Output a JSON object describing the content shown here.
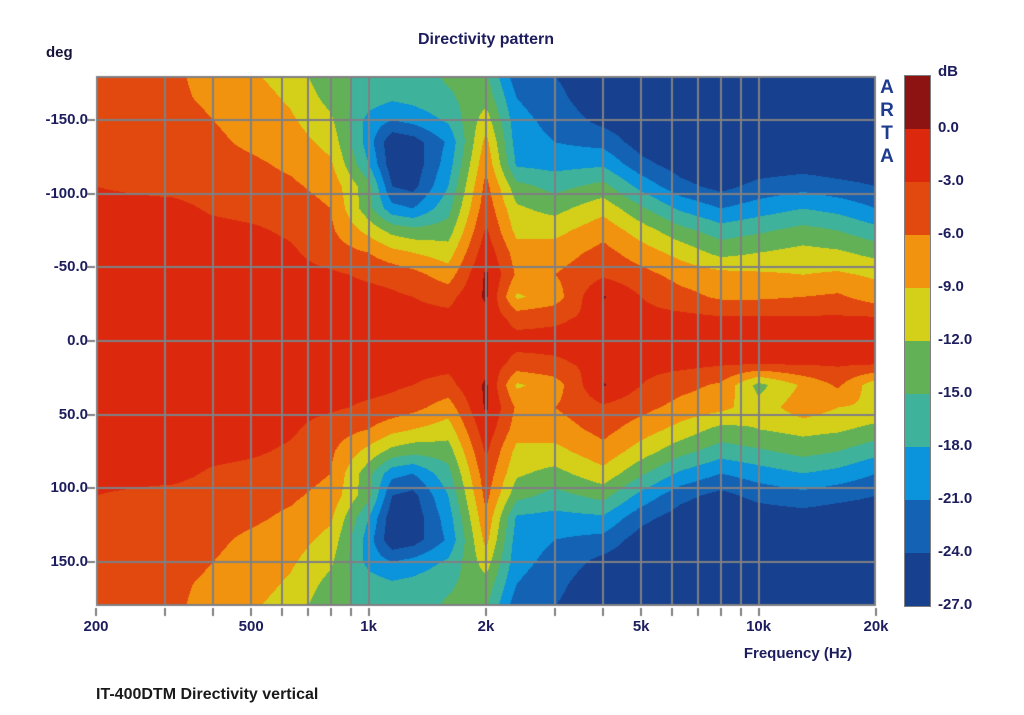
{
  "title": "Directivity pattern",
  "caption": "IT-400DTM Directivity vertical",
  "watermark": {
    "letters": [
      "A",
      "R",
      "T",
      "A"
    ],
    "color": "#1e3c8e"
  },
  "y_axis": {
    "unit_label": "deg",
    "tick_labels": [
      "-150.0",
      "-100.0",
      "-50.0",
      "0.0",
      "50.0",
      "100.0",
      "150.0"
    ],
    "tick_angles": [
      -150,
      -100,
      -50,
      0,
      50,
      100,
      150
    ]
  },
  "x_axis": {
    "title": "Frequency (Hz)",
    "tick_labels": [
      "200",
      "500",
      "1k",
      "2k",
      "5k",
      "10k",
      "20k"
    ],
    "tick_freqs": [
      200,
      500,
      1000,
      2000,
      5000,
      10000,
      20000
    ]
  },
  "colorbar": {
    "unit_label": "dB",
    "tick_labels": [
      "0.0",
      "-3.0",
      "-6.0",
      "-9.0",
      "-12.0",
      "-15.0",
      "-18.0",
      "-21.0",
      "-24.0",
      "-27.0"
    ]
  },
  "chart_data": {
    "type": "heatmap",
    "title": "Directivity pattern",
    "xlabel": "Frequency (Hz)",
    "ylabel": "deg",
    "x_scale": "log",
    "x_range": [
      200,
      20000
    ],
    "y_range": [
      -180,
      180
    ],
    "value_unit": "dB",
    "value_range": [
      0,
      -27
    ],
    "levels_db": [
      0,
      -3,
      -6,
      -9,
      -12,
      -15,
      -18,
      -21,
      -24
    ],
    "colors": [
      "#8D1212",
      "#DC290E",
      "#E2490F",
      "#F1930E",
      "#D4D01A",
      "#62B157",
      "#3FB29B",
      "#0B93DB",
      "#1462B4",
      "#17408E"
    ],
    "grid_color": "#7f7f82",
    "gridline_freqs": [
      300,
      400,
      500,
      600,
      700,
      800,
      900,
      1000,
      2000,
      3000,
      4000,
      5000,
      6000,
      7000,
      8000,
      9000,
      10000
    ],
    "gridline_angles": [
      -150,
      -100,
      -50,
      0,
      50,
      100,
      150
    ],
    "minor_tick_freqs": [
      200,
      300,
      400,
      500,
      600,
      700,
      800,
      900,
      1000,
      2000,
      3000,
      4000,
      5000,
      6000,
      7000,
      8000,
      9000,
      10000,
      20000
    ],
    "freqs": [
      200,
      250,
      315,
      400,
      500,
      630,
      800,
      1000,
      1150,
      1300,
      1600,
      2000,
      2400,
      3000,
      4000,
      5000,
      6300,
      8000,
      10000,
      13000,
      16000,
      20000
    ],
    "angles": [
      -180,
      -165,
      -150,
      -135,
      -120,
      -105,
      -90,
      -75,
      -60,
      -45,
      -30,
      -15,
      0,
      15,
      30,
      45,
      60,
      75,
      90,
      105,
      120,
      135,
      150,
      165,
      180
    ],
    "values_db": [
      [
        -4.5,
        -5,
        -5.5,
        -7,
        -8.5,
        -10.5,
        -14,
        -16,
        -17,
        -16.5,
        -14.5,
        -14.5,
        -23,
        -24,
        -26.5,
        -27,
        -28,
        -28,
        -28,
        -28,
        -28,
        -28
      ],
      [
        -4.5,
        -4.5,
        -5.5,
        -6.5,
        -7.5,
        -9.5,
        -13,
        -16.5,
        -17.5,
        -17,
        -15.5,
        -13,
        -21,
        -23,
        -26.5,
        -27,
        -28,
        -28,
        -28,
        -28,
        -28,
        -28
      ],
      [
        -4.5,
        -4.5,
        -5,
        -6,
        -7,
        -8.5,
        -11.5,
        -19,
        -21,
        -20,
        -17.5,
        -10.5,
        -20,
        -22,
        -25,
        -26.5,
        -27.5,
        -28,
        -27.5,
        -27.5,
        -27.5,
        -27.5
      ],
      [
        -4.5,
        -4.5,
        -5,
        -5.5,
        -6.5,
        -7.5,
        -10,
        -19.5,
        -26.5,
        -25.5,
        -20.5,
        -8,
        -19.5,
        -21,
        -22,
        -25.5,
        -27,
        -27.5,
        -27,
        -27,
        -27,
        -27
      ],
      [
        -4,
        -4.5,
        -4.5,
        -5,
        -5.5,
        -6.5,
        -8.5,
        -18,
        -26,
        -26,
        -19.5,
        -6.5,
        -18.5,
        -19,
        -18.5,
        -23,
        -25.5,
        -27,
        -26,
        -25.5,
        -26,
        -26
      ],
      [
        -3,
        -3.5,
        -4,
        -4.5,
        -5,
        -5.5,
        -7,
        -14,
        -24,
        -25,
        -18,
        -5,
        -14,
        -16,
        -14,
        -19,
        -23,
        -25,
        -23,
        -22,
        -23,
        -24
      ],
      [
        -2,
        -2,
        -2,
        -3.5,
        -4,
        -4.5,
        -6,
        -14,
        -20,
        -21,
        -16,
        -4,
        -11.5,
        -13,
        -10,
        -14.5,
        -18.5,
        -21,
        -19.5,
        -18,
        -19,
        -21
      ],
      [
        -1.5,
        -1.5,
        -1.5,
        -2,
        -2.5,
        -3.5,
        -5.5,
        -10,
        -13,
        -14,
        -13.5,
        -2.5,
        -10,
        -10,
        -7,
        -10.5,
        -14,
        -16.5,
        -15.5,
        -14,
        -15,
        -17
      ],
      [
        -1.5,
        -1.5,
        -1.5,
        -1.5,
        -1.5,
        -2.5,
        -4.5,
        -6,
        -8,
        -9,
        -10.5,
        -1,
        -7.5,
        -7.5,
        -5,
        -7.5,
        -10,
        -13,
        -12,
        -11,
        -11.5,
        -13
      ],
      [
        -1.5,
        -1.5,
        -1.5,
        -1.5,
        -1.5,
        -2,
        -2.5,
        -3.5,
        -4,
        -5,
        -7.5,
        0.5,
        -6.5,
        -6,
        -3.5,
        -5,
        -7,
        -8,
        -8.5,
        -9,
        -8.5,
        -9.5
      ],
      [
        -1.5,
        -1.5,
        -1.5,
        -1.5,
        -1.5,
        -1.5,
        -2,
        -2,
        -2.5,
        -3,
        -4,
        0.5,
        -9.5,
        -7.5,
        0.3,
        -3,
        -5,
        -6.5,
        -6.5,
        -6,
        -5.5,
        -7.5
      ],
      [
        -1.5,
        -1.5,
        -1.5,
        -1.5,
        -1.5,
        -1.5,
        -1.5,
        -1.5,
        -2,
        -2,
        -2,
        -1,
        -4,
        -3.5,
        -2,
        -2,
        -2,
        -2.5,
        -2.5,
        -2.5,
        -2.5,
        -2.5
      ],
      [
        -1.5,
        -1.5,
        -1.5,
        -1.5,
        -1.5,
        -1.5,
        -1.5,
        -1.5,
        -1.5,
        -1.5,
        -1.5,
        -1.5,
        -2,
        -2,
        -2,
        -2,
        -2,
        -2,
        -2,
        -2,
        -2,
        -2
      ],
      [
        -1.5,
        -1.5,
        -1.5,
        -1.5,
        -1.5,
        -1.5,
        -1.5,
        -1.5,
        -2,
        -2,
        -2,
        -1,
        -4,
        -3.5,
        -2,
        -2,
        -2,
        -2.5,
        -2.5,
        -2.5,
        -2.5,
        -2.5
      ],
      [
        -1.5,
        -1.5,
        -1.5,
        -1.5,
        -1.5,
        -1.5,
        -2,
        -2,
        -2.5,
        -3,
        -4,
        0.5,
        -9.5,
        -7.5,
        0.3,
        -3,
        -5,
        -6.5,
        -13,
        -8.5,
        -5.5,
        -11
      ],
      [
        -1.5,
        -1.5,
        -1.5,
        -1.5,
        -1.5,
        -2,
        -2.5,
        -3.5,
        -4,
        -5,
        -7.5,
        0.5,
        -6.5,
        -6,
        -3.5,
        -5,
        -7,
        -8,
        -11,
        -7,
        -9,
        -9.5
      ],
      [
        -1.5,
        -1.5,
        -1.5,
        -1.5,
        -1.5,
        -2.5,
        -4.5,
        -6,
        -8,
        -9,
        -10.5,
        -1,
        -7.5,
        -7.5,
        -5,
        -7.5,
        -10,
        -13,
        -12,
        -11,
        -11.5,
        -13
      ],
      [
        -1.5,
        -1.5,
        -1.5,
        -2,
        -2.5,
        -3.5,
        -5.5,
        -10,
        -13,
        -14,
        -13.5,
        -2.5,
        -10,
        -10,
        -7,
        -10.5,
        -14,
        -16.5,
        -15.5,
        -14,
        -15,
        -17
      ],
      [
        -2,
        -2,
        -2,
        -3.5,
        -4,
        -4.5,
        -6,
        -14,
        -20,
        -21,
        -16,
        -4,
        -11.5,
        -13,
        -10,
        -14.5,
        -18.5,
        -21,
        -19.5,
        -18,
        -19,
        -21
      ],
      [
        -3,
        -3.5,
        -4,
        -4.5,
        -5,
        -5.5,
        -7,
        -14,
        -24,
        -25,
        -18,
        -5,
        -14,
        -16,
        -14,
        -19,
        -23,
        -25,
        -23,
        -22,
        -23,
        -24
      ],
      [
        -4,
        -4.5,
        -4.5,
        -5,
        -5.5,
        -6.5,
        -8.5,
        -18,
        -26,
        -26,
        -19.5,
        -6.5,
        -18.5,
        -19,
        -18.5,
        -23,
        -25.5,
        -27,
        -26,
        -25.5,
        -26,
        -26
      ],
      [
        -4.5,
        -4.5,
        -5,
        -5.5,
        -6.5,
        -7.5,
        -10,
        -19.5,
        -26.5,
        -25.5,
        -20.5,
        -8,
        -19.5,
        -21,
        -22,
        -25.5,
        -27,
        -27.5,
        -27,
        -27,
        -27,
        -27
      ],
      [
        -4.5,
        -4.5,
        -5,
        -6,
        -7,
        -8.5,
        -11.5,
        -19,
        -21,
        -20,
        -17.5,
        -10.5,
        -20,
        -22,
        -25,
        -26.5,
        -27.5,
        -28,
        -27.5,
        -27.5,
        -27.5,
        -27.5
      ],
      [
        -4.5,
        -4.5,
        -5.5,
        -6.5,
        -7.5,
        -9.5,
        -13,
        -16.5,
        -17.5,
        -17,
        -15.5,
        -13,
        -21,
        -23,
        -26.5,
        -27,
        -28,
        -28,
        -28,
        -28,
        -28,
        -28
      ],
      [
        -4.5,
        -5,
        -5.5,
        -7,
        -8.5,
        -10.5,
        -14,
        -16,
        -17,
        -16.5,
        -14.5,
        -14.5,
        -23,
        -24,
        -26.5,
        -27,
        -28,
        -28,
        -28,
        -28,
        -28,
        -28
      ]
    ]
  }
}
